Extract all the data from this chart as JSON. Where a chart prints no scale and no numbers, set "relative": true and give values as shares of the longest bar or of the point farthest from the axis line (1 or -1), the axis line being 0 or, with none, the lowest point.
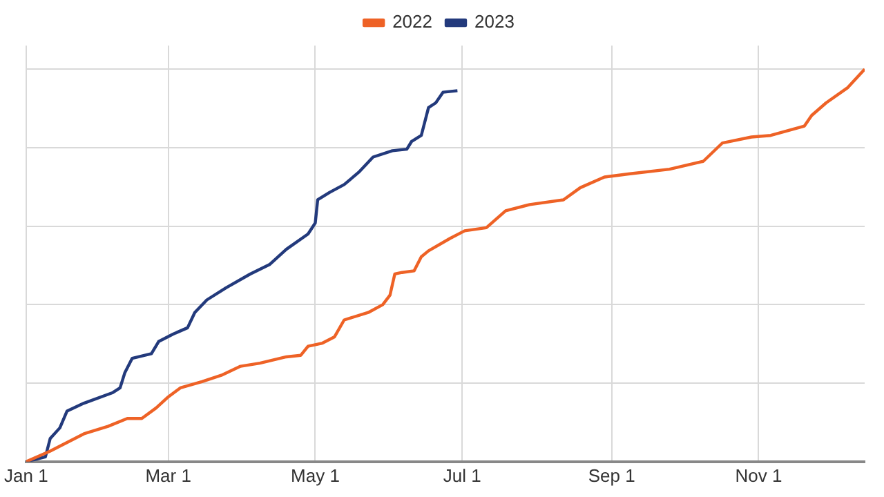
{
  "chart_data": {
    "type": "line",
    "relative": true,
    "grid": true,
    "legend": "top",
    "marker": "none",
    "line_style": "solid",
    "xlim": [
      "--01-01",
      "--12-15"
    ],
    "xticks": [
      {
        "value": "--01-01",
        "label": "Jan 1"
      },
      {
        "value": "--03-01",
        "label": "Mar 1"
      },
      {
        "value": "--05-01",
        "label": "May 1"
      },
      {
        "value": "--07-01",
        "label": "Jul 1"
      },
      {
        "value": "--09-01",
        "label": "Sep 1"
      },
      {
        "value": "--11-01",
        "label": "Nov 1"
      }
    ],
    "series": [
      {
        "name": "2022",
        "color": "#ee6226",
        "x": [
          "--01-01",
          "--01-11",
          "--01-25",
          "--02-04",
          "--02-12",
          "--02-18",
          "--02-24",
          "--03-01",
          "--03-06",
          "--03-15",
          "--03-23",
          "--03-31",
          "--04-08",
          "--04-19",
          "--04-25",
          "--04-28",
          "--05-04",
          "--05-09",
          "--05-13",
          "--05-23",
          "--05-29",
          "--06-01",
          "--06-03",
          "--06-06",
          "--06-11",
          "--06-14",
          "--06-17",
          "--06-26",
          "--07-02",
          "--07-11",
          "--07-19",
          "--07-29",
          "--08-12",
          "--08-19",
          "--08-29",
          "--09-08",
          "--09-25",
          "--10-09",
          "--10-17",
          "--10-29",
          "--11-06",
          "--11-20",
          "--11-23",
          "--11-29",
          "--12-08",
          "--12-15"
        ],
        "values": [
          0,
          0.027,
          0.071,
          0.09,
          0.11,
          0.11,
          0.137,
          0.165,
          0.188,
          0.204,
          0.22,
          0.243,
          0.251,
          0.267,
          0.271,
          0.294,
          0.302,
          0.318,
          0.361,
          0.38,
          0.4,
          0.424,
          0.478,
          0.482,
          0.486,
          0.522,
          0.537,
          0.569,
          0.588,
          0.596,
          0.639,
          0.655,
          0.667,
          0.698,
          0.725,
          0.733,
          0.745,
          0.765,
          0.812,
          0.827,
          0.831,
          0.855,
          0.882,
          0.914,
          0.953,
          1
        ]
      },
      {
        "name": "2023",
        "color": "#233a7c",
        "x": [
          "--01-01",
          "--01-09",
          "--01-11",
          "--01-15",
          "--01-18",
          "--01-25",
          "--02-06",
          "--02-09",
          "--02-11",
          "--02-14",
          "--02-22",
          "--02-25",
          "--03-03",
          "--03-09",
          "--03-12",
          "--03-17",
          "--03-25",
          "--04-04",
          "--04-12",
          "--04-19",
          "--04-28",
          "--05-01",
          "--05-02",
          "--05-07",
          "--05-13",
          "--05-19",
          "--05-25",
          "--06-02",
          "--06-08",
          "--06-10",
          "--06-14",
          "--06-17",
          "--06-20",
          "--06-23",
          "--06-29"
        ],
        "values": [
          0,
          0.012,
          0.059,
          0.086,
          0.129,
          0.149,
          0.176,
          0.188,
          0.227,
          0.263,
          0.275,
          0.306,
          0.325,
          0.341,
          0.38,
          0.412,
          0.443,
          0.478,
          0.502,
          0.541,
          0.58,
          0.608,
          0.667,
          0.686,
          0.706,
          0.737,
          0.776,
          0.792,
          0.796,
          0.816,
          0.831,
          0.902,
          0.914,
          0.941,
          0.945
        ]
      }
    ]
  }
}
